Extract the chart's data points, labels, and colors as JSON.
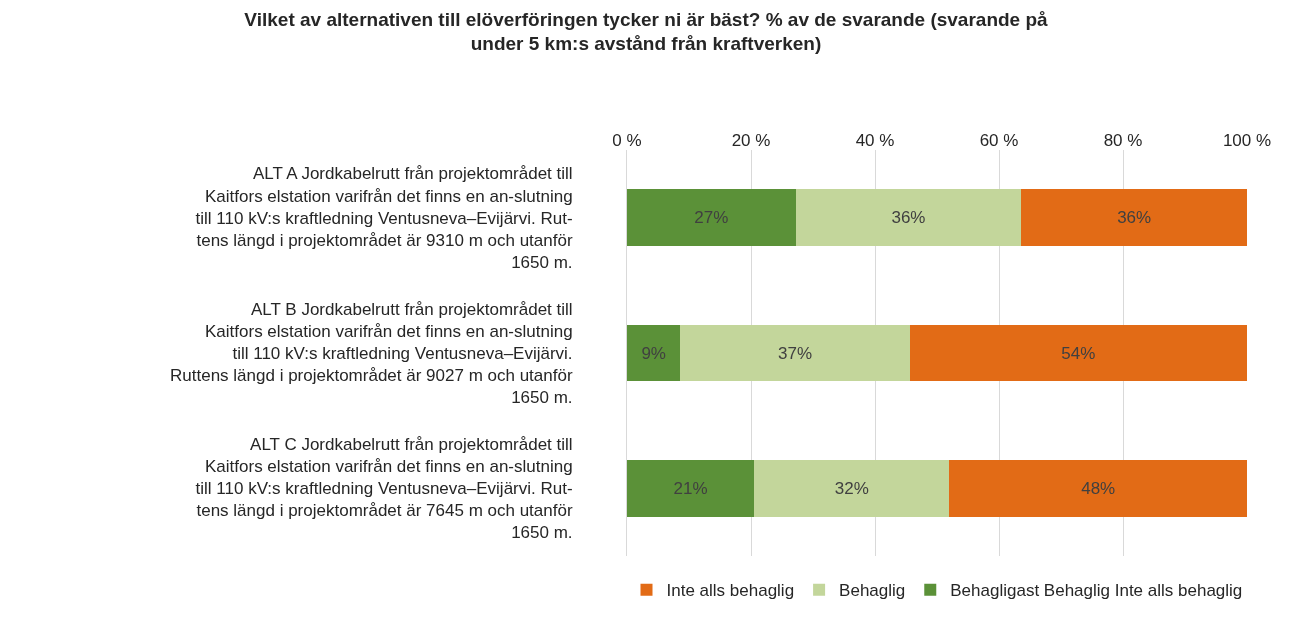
{
  "chart_data": {
    "type": "bar",
    "orientation": "horizontal",
    "stacked": true,
    "title": "Vilket av alternativen till elöverföringen tycker ni är bäst? % av de svarande (svarande på under 5 km:s avstånd från kraftverken)",
    "categories": [
      "ALT A Jordkabelrutt från projektområdet till Kaitfors elstation varifrån det finns en an-slutning till 110 kV:s kraftledning Ventusneva–Evijärvi. Rut-tens längd i projektområdet är 9310 m och utanför 1650 m.",
      "ALT B Jordkabelrutt från projektområdet till Kaitfors elstation varifrån det finns en an-slutning till 110 kV:s kraftledning Ventusneva–Evijärvi. Ruttens längd i projektområdet är 9027 m och utanför 1650 m.",
      "ALT C Jordkabelrutt från projektområdet till Kaitfors elstation varifrån det finns en an-slutning till 110 kV:s kraftledning Ventusneva–Evijärvi. Rut-tens längd i projektområdet är 7645 m och utanför 1650 m."
    ],
    "series": [
      {
        "name": "Behagligast Behaglig Inte alls behaglig",
        "color": "#5b9138",
        "values": [
          27.2,
          8.6,
          20.5
        ],
        "value_labels": [
          "27%",
          "9%",
          "21%"
        ]
      },
      {
        "name": "Behaglig",
        "color": "#c3d69b",
        "values": [
          36.4,
          37.0,
          31.5
        ],
        "value_labels": [
          "36%",
          "37%",
          "32%"
        ]
      },
      {
        "name": "Inte alls behaglig",
        "color": "#e26b16",
        "values": [
          36.4,
          54.4,
          48.0
        ],
        "value_labels": [
          "36%",
          "54%",
          "48%"
        ]
      }
    ],
    "xlim": [
      0,
      100
    ],
    "xticks": [
      {
        "value": 0,
        "label": "0 %"
      },
      {
        "value": 20,
        "label": "20 %"
      },
      {
        "value": 40,
        "label": "40 %"
      },
      {
        "value": 60,
        "label": "60 %"
      },
      {
        "value": 80,
        "label": "80 %"
      },
      {
        "value": 100,
        "label": "100 %"
      }
    ],
    "grid": "x",
    "legend": "bottom"
  }
}
